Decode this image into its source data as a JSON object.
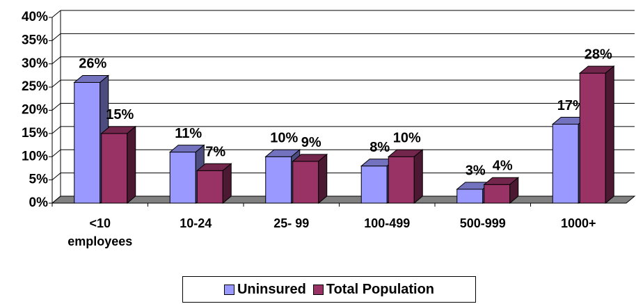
{
  "chart_data": {
    "type": "bar3d",
    "categories": [
      "<10 employees",
      "10-24",
      "25- 99",
      "100-499",
      "500-999",
      "1000+"
    ],
    "series": [
      {
        "name": "Uninsured",
        "color": "#9999ff",
        "values": [
          26,
          11,
          10,
          8,
          3,
          17
        ],
        "value_labels": [
          "26%",
          "11%",
          "10%",
          "8%",
          "3%",
          "17%"
        ]
      },
      {
        "name": "Total Population",
        "color": "#993366",
        "values": [
          15,
          7,
          9,
          10,
          4,
          28
        ],
        "value_labels": [
          "15%",
          "7%",
          "9%",
          "10%",
          "4%",
          "28%"
        ]
      }
    ],
    "ylim": [
      0,
      40
    ],
    "yticks": [
      {
        "value": 0,
        "label": "0%"
      },
      {
        "value": 5,
        "label": "5%"
      },
      {
        "value": 10,
        "label": "10%"
      },
      {
        "value": 15,
        "label": "15%"
      },
      {
        "value": 20,
        "label": "20%"
      },
      {
        "value": 25,
        "label": "25%"
      },
      {
        "value": 30,
        "label": "30%"
      },
      {
        "value": 35,
        "label": "35%"
      },
      {
        "value": 40,
        "label": "40%"
      }
    ],
    "grid": true,
    "legend": "bottom"
  }
}
